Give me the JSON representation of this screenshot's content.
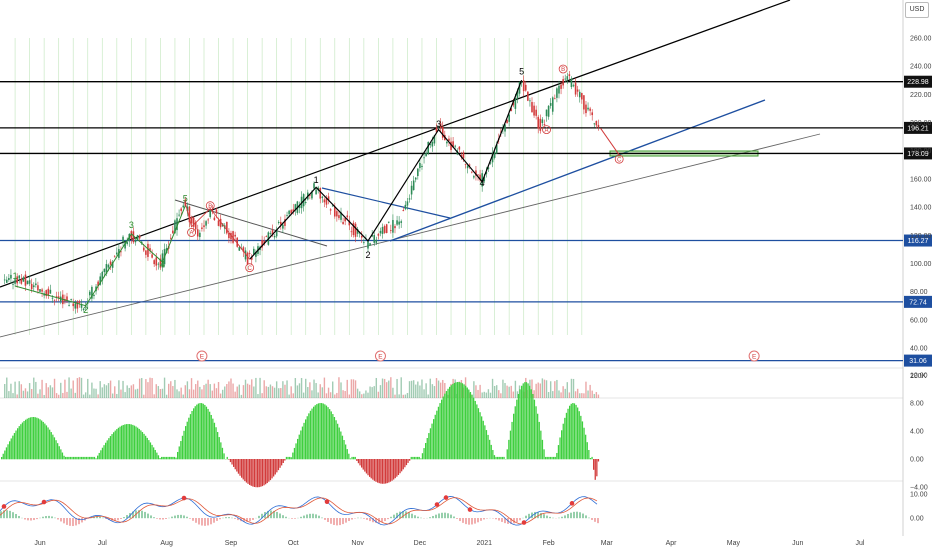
{
  "currency": "USD",
  "chart_data": {
    "type": "candlestick",
    "x_labels": [
      "Jun",
      "Jul",
      "Aug",
      "Sep",
      "Oct",
      "Nov",
      "Dec",
      "2021",
      "Feb",
      "Mar",
      "Apr",
      "May",
      "Jun",
      "Jul"
    ],
    "price_axis": {
      "ticks": [
        260,
        240,
        220,
        200,
        180,
        160,
        140,
        120,
        100,
        80,
        60,
        40
      ],
      "tick_labels": [
        "260.00",
        "240.00",
        "220.00",
        "200.00",
        "180.00",
        "160.00",
        "140.00",
        "120.00",
        "100.00",
        "80.00",
        "60.00",
        "40.00"
      ],
      "range": [
        37,
        270
      ]
    },
    "horizontal_levels": [
      {
        "value": 228.98,
        "label": "228.98",
        "color": "#000000"
      },
      {
        "value": 196.21,
        "label": "196.21",
        "color": "#000000"
      },
      {
        "value": 178.09,
        "label": "178.09",
        "color": "#000000"
      },
      {
        "value": 116.27,
        "label": "116.27",
        "color": "#1e4fa0"
      },
      {
        "value": 72.74,
        "label": "72.74",
        "color": "#1e4fa0"
      },
      {
        "value": 31.06,
        "label": "31.06",
        "color": "#1e4fa0"
      }
    ],
    "wave_labels": [
      {
        "text": "1",
        "date": "2020-05-20",
        "price": 89,
        "color": "#2e8b2e"
      },
      {
        "text": "2",
        "date": "2020-06-23",
        "price": 65,
        "color": "#2e8b2e"
      },
      {
        "text": "3",
        "date": "2020-07-15",
        "price": 125,
        "color": "#2e8b2e"
      },
      {
        "text": "4",
        "date": "2020-07-30",
        "price": 97,
        "color": "#2e8b2e"
      },
      {
        "text": "5",
        "date": "2020-08-10",
        "price": 144,
        "color": "#2e8b2e"
      },
      {
        "text": "1",
        "date": "2020-10-12",
        "price": 157,
        "color": "#000000"
      },
      {
        "text": "2",
        "date": "2020-11-06",
        "price": 104,
        "color": "#000000"
      },
      {
        "text": "3",
        "date": "2020-12-10",
        "price": 197,
        "color": "#000000"
      },
      {
        "text": "4",
        "date": "2020-12-31",
        "price": 155,
        "color": "#000000"
      },
      {
        "text": "5",
        "date": "2021-01-19",
        "price": 234,
        "color": "#000000"
      }
    ],
    "correction_labels": [
      {
        "text": "B",
        "date": "2020-08-22",
        "price": 141
      },
      {
        "text": "A",
        "date": "2020-08-13",
        "price": 122
      },
      {
        "text": "C",
        "date": "2020-09-10",
        "price": 97
      },
      {
        "text": "B",
        "date": "2021-02-08",
        "price": 238
      },
      {
        "text": "A",
        "date": "2021-01-31",
        "price": 195
      },
      {
        "text": "C",
        "date": "2021-03-07",
        "price": 174
      }
    ],
    "earnings_markers": [
      {
        "text": "E",
        "date": "2020-08-18"
      },
      {
        "text": "E",
        "date": "2020-11-12"
      },
      {
        "text": "E",
        "date": "2021-05-11"
      }
    ],
    "volume_axis": {
      "label": "200K"
    },
    "oscillator_axis": {
      "ticks": [
        12,
        8,
        4,
        0,
        -4
      ],
      "tick_labels": [
        "12.00",
        "8.00",
        "4.00",
        "0.00",
        "−4.00"
      ]
    },
    "macd_axis": {
      "ticks": [
        10,
        0
      ],
      "tick_labels": [
        "10.00",
        "0.00"
      ]
    }
  }
}
